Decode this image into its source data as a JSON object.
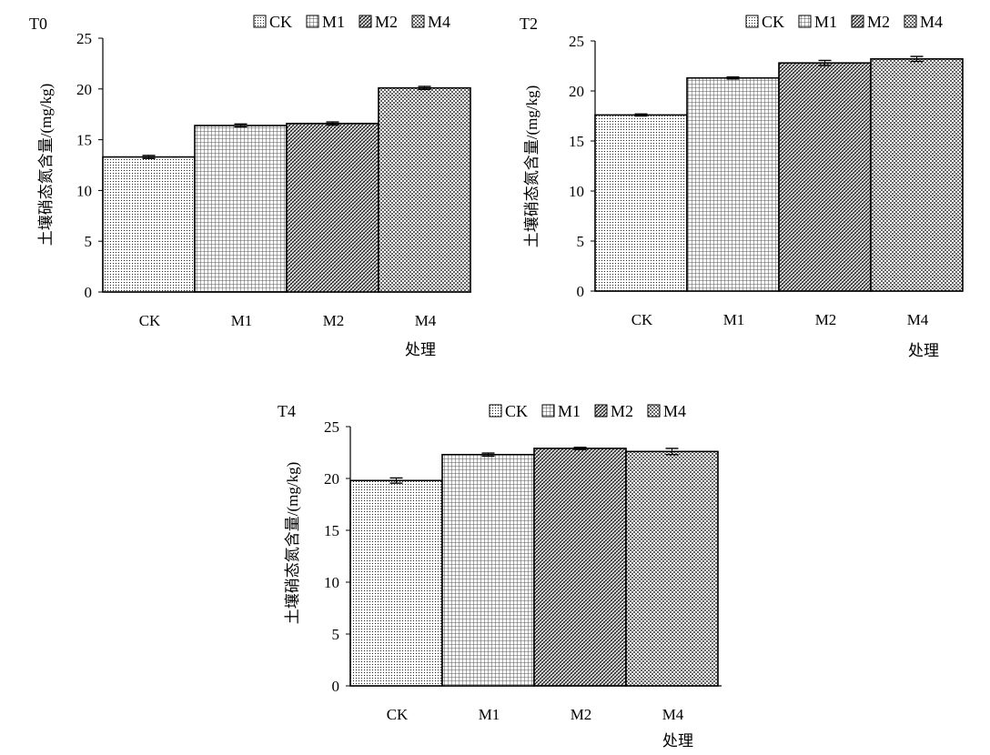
{
  "chart_data": [
    {
      "type": "bar",
      "panel_label": "T0",
      "categories": [
        "CK",
        "M1",
        "M2",
        "M4"
      ],
      "values": [
        13.3,
        16.4,
        16.6,
        20.1
      ],
      "errors": [
        0.15,
        0.15,
        0.15,
        0.15
      ],
      "legend": [
        "CK",
        "M1",
        "M2",
        "M4"
      ],
      "ylabel": "土壤硝态氮含量/(mg/kg)",
      "xlabel": "处理",
      "ylim": [
        0,
        25
      ],
      "yticks": [
        0,
        5,
        10,
        15,
        20,
        25
      ],
      "legend_position": "top-right",
      "grid": false
    },
    {
      "type": "bar",
      "panel_label": "T2",
      "categories": [
        "CK",
        "M1",
        "M2",
        "M4"
      ],
      "values": [
        17.6,
        21.3,
        22.8,
        23.2
      ],
      "errors": [
        0.1,
        0.1,
        0.25,
        0.25
      ],
      "legend": [
        "CK",
        "M1",
        "M2",
        "M4"
      ],
      "ylabel": "土壤硝态氮含量/(mg/kg)",
      "xlabel": "处理",
      "ylim": [
        0,
        25
      ],
      "yticks": [
        0,
        5,
        10,
        15,
        20,
        25
      ],
      "legend_position": "top-right",
      "grid": false
    },
    {
      "type": "bar",
      "panel_label": "T4",
      "categories": [
        "CK",
        "M1",
        "M2",
        "M4"
      ],
      "values": [
        19.8,
        22.3,
        22.9,
        22.6
      ],
      "errors": [
        0.25,
        0.15,
        0.1,
        0.3
      ],
      "legend": [
        "CK",
        "M1",
        "M2",
        "M4"
      ],
      "ylabel": "土壤硝态氮含量/(mg/kg)",
      "xlabel": "处理",
      "ylim": [
        0,
        25
      ],
      "yticks": [
        0,
        5,
        10,
        15,
        20,
        25
      ],
      "legend_position": "top-right",
      "grid": false
    }
  ]
}
